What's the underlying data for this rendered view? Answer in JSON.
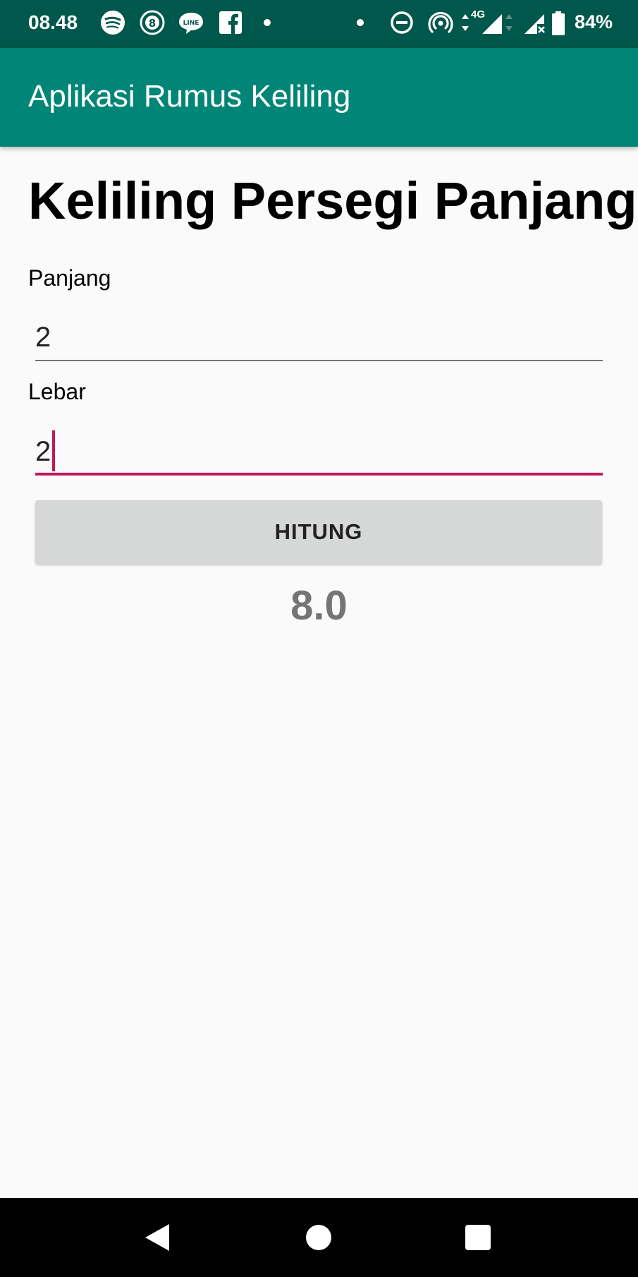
{
  "status_bar": {
    "time": "08.48",
    "battery": "84%",
    "network": "4G",
    "icons": [
      "spotify-icon",
      "8ball-icon",
      "line-icon",
      "facebook-icon",
      "dot-icon",
      "dot-icon",
      "dnd-icon",
      "hotspot-icon",
      "data-arrows-icon",
      "signal-icon",
      "signal-x-icon",
      "battery-icon"
    ]
  },
  "app_bar": {
    "title": "Aplikasi Rumus Keliling"
  },
  "main": {
    "heading": "Keliling Persegi Panjang",
    "panjang": {
      "label": "Panjang",
      "value": "2"
    },
    "lebar": {
      "label": "Lebar",
      "value": "2"
    },
    "button_label": "HITUNG",
    "result": "8.0"
  },
  "nav_bar": {
    "buttons": [
      "back-icon",
      "home-icon",
      "recents-icon"
    ]
  },
  "colors": {
    "app_bar": "#008577",
    "status_bar": "#00574b",
    "accent": "#c2185b",
    "button": "#d6d7d7",
    "result_text": "#757575"
  }
}
